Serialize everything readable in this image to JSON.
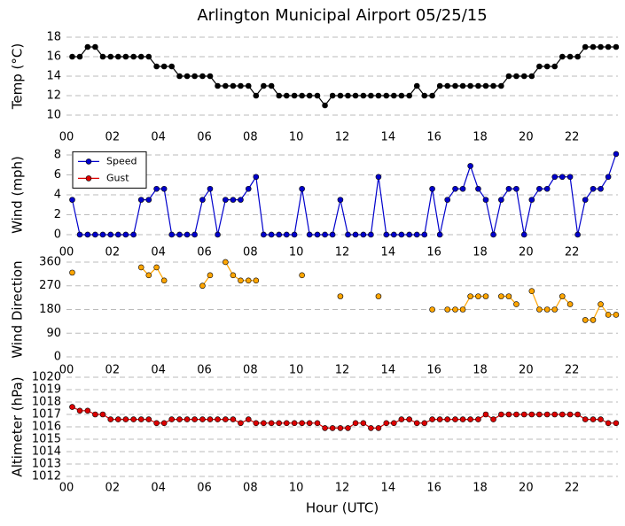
{
  "chart_data": [
    {
      "type": "line",
      "title": "Arlington Municipal Airport 05/25/15",
      "y_label": "Temp (°C)",
      "x": [
        0.25,
        0.58,
        0.92,
        1.25,
        1.58,
        1.92,
        2.25,
        2.58,
        2.92,
        3.25,
        3.58,
        3.92,
        4.25,
        4.58,
        4.92,
        5.25,
        5.58,
        5.92,
        6.25,
        6.58,
        6.92,
        7.25,
        7.58,
        7.92,
        8.25,
        8.58,
        8.92,
        9.25,
        9.58,
        9.92,
        10.25,
        10.58,
        10.92,
        11.25,
        11.58,
        11.92,
        12.25,
        12.58,
        12.92,
        13.25,
        13.58,
        13.92,
        14.25,
        14.58,
        14.92,
        15.25,
        15.58,
        15.92,
        16.25,
        16.58,
        16.92,
        17.25,
        17.58,
        17.92,
        18.25,
        18.58,
        18.92,
        19.25,
        19.58,
        19.92,
        20.25,
        20.58,
        20.92,
        21.25,
        21.58,
        21.92,
        22.25,
        22.58,
        22.92,
        23.25,
        23.58,
        23.92
      ],
      "values": [
        16,
        16,
        17,
        17,
        16,
        16,
        16,
        16,
        16,
        16,
        16,
        15,
        15,
        15,
        14,
        14,
        14,
        14,
        14,
        13,
        13,
        13,
        13,
        13,
        12,
        13,
        13,
        12,
        12,
        12,
        12,
        12,
        12,
        11,
        12,
        12,
        12,
        12,
        12,
        12,
        12,
        12,
        12,
        12,
        12,
        13,
        12,
        12,
        13,
        13,
        13,
        13,
        13,
        13,
        13,
        13,
        13,
        14,
        14,
        14,
        14,
        15,
        15,
        15,
        16,
        16,
        16,
        17,
        17,
        17,
        17,
        17
      ],
      "color": "#000000",
      "xlim": [
        0,
        24
      ],
      "xticks": [
        {
          "value": 0,
          "label": "00"
        },
        {
          "value": 2,
          "label": "02"
        },
        {
          "value": 4,
          "label": "04"
        },
        {
          "value": 6,
          "label": "06"
        },
        {
          "value": 8,
          "label": "08"
        },
        {
          "value": 10,
          "label": "10"
        },
        {
          "value": 12,
          "label": "12"
        },
        {
          "value": 14,
          "label": "14"
        },
        {
          "value": 16,
          "label": "16"
        },
        {
          "value": 18,
          "label": "18"
        },
        {
          "value": 20,
          "label": "20"
        },
        {
          "value": 22,
          "label": "22"
        }
      ],
      "ylim": [
        9.5,
        18.5
      ],
      "yticks": [
        10,
        12,
        14,
        16,
        18
      ],
      "grid": true
    },
    {
      "type": "line",
      "y_label": "Wind (mph)",
      "x": [
        0.25,
        0.58,
        0.92,
        1.25,
        1.58,
        1.92,
        2.25,
        2.58,
        2.92,
        3.25,
        3.58,
        3.92,
        4.25,
        4.58,
        4.92,
        5.25,
        5.58,
        5.92,
        6.25,
        6.58,
        6.92,
        7.25,
        7.58,
        7.92,
        8.25,
        8.58,
        8.92,
        9.25,
        9.58,
        9.92,
        10.25,
        10.58,
        10.92,
        11.25,
        11.58,
        11.92,
        12.25,
        12.58,
        12.92,
        13.25,
        13.58,
        13.92,
        14.25,
        14.58,
        14.92,
        15.25,
        15.58,
        15.92,
        16.25,
        16.58,
        16.92,
        17.25,
        17.58,
        17.92,
        18.25,
        18.58,
        18.92,
        19.25,
        19.58,
        19.92,
        20.25,
        20.58,
        20.92,
        21.25,
        21.58,
        21.92,
        22.25,
        22.58,
        22.92,
        23.25,
        23.58,
        23.92
      ],
      "series": [
        {
          "name": "Speed",
          "color": "#0000cc",
          "values": [
            3.5,
            0,
            0,
            0,
            0,
            0,
            0,
            0,
            0,
            3.5,
            3.5,
            4.6,
            4.6,
            0,
            0,
            0,
            0,
            3.5,
            4.6,
            0,
            3.5,
            3.5,
            3.5,
            4.6,
            5.8,
            0,
            0,
            0,
            0,
            0,
            4.6,
            0,
            0,
            0,
            0,
            3.5,
            0,
            0,
            0,
            0,
            5.8,
            0,
            0,
            0,
            0,
            0,
            0,
            4.6,
            0,
            3.5,
            4.6,
            4.6,
            6.9,
            4.6,
            3.5,
            0,
            3.5,
            4.6,
            4.6,
            0,
            3.5,
            4.6,
            4.6,
            5.8,
            5.8,
            5.8,
            0,
            3.5,
            4.6,
            4.6,
            5.8,
            8.1
          ]
        },
        {
          "name": "Gust",
          "color": "#dd0000",
          "values": [
            null,
            null,
            null,
            null,
            null,
            null,
            null,
            null,
            null,
            null,
            null,
            null,
            null,
            null,
            null,
            null,
            null,
            null,
            null,
            null,
            null,
            null,
            null,
            null,
            null,
            null,
            null,
            null,
            null,
            null,
            null,
            null,
            null,
            null,
            null,
            null,
            null,
            null,
            null,
            null,
            null,
            null,
            null,
            null,
            null,
            null,
            null,
            null,
            null,
            null,
            null,
            null,
            null,
            null,
            null,
            null,
            null,
            null,
            null,
            null,
            null,
            null,
            null,
            null,
            null,
            null,
            null,
            null,
            null,
            null,
            null,
            null
          ]
        }
      ],
      "legend": "upper left",
      "xlim": [
        0,
        24
      ],
      "xticks": [
        {
          "value": 0,
          "label": "00"
        },
        {
          "value": 2,
          "label": "02"
        },
        {
          "value": 4,
          "label": "04"
        },
        {
          "value": 6,
          "label": "06"
        },
        {
          "value": 8,
          "label": "08"
        },
        {
          "value": 10,
          "label": "10"
        },
        {
          "value": 12,
          "label": "12"
        },
        {
          "value": 14,
          "label": "14"
        },
        {
          "value": 16,
          "label": "16"
        },
        {
          "value": 18,
          "label": "18"
        },
        {
          "value": 20,
          "label": "20"
        },
        {
          "value": 22,
          "label": "22"
        }
      ],
      "ylim": [
        -0.5,
        8.5
      ],
      "yticks": [
        0,
        2,
        4,
        6,
        8
      ],
      "grid": true
    },
    {
      "type": "line",
      "y_label": "Wind Direction",
      "x": [
        0.25,
        0.58,
        0.92,
        1.25,
        1.58,
        1.92,
        2.25,
        2.58,
        2.92,
        3.25,
        3.58,
        3.92,
        4.25,
        4.58,
        4.92,
        5.25,
        5.58,
        5.92,
        6.25,
        6.58,
        6.92,
        7.25,
        7.58,
        7.92,
        8.25,
        8.58,
        8.92,
        9.25,
        9.58,
        9.92,
        10.25,
        10.58,
        10.92,
        11.25,
        11.58,
        11.92,
        12.25,
        12.58,
        12.92,
        13.25,
        13.58,
        13.92,
        14.25,
        14.58,
        14.92,
        15.25,
        15.58,
        15.92,
        16.25,
        16.58,
        16.92,
        17.25,
        17.58,
        17.92,
        18.25,
        18.58,
        18.92,
        19.25,
        19.58,
        19.92,
        20.25,
        20.58,
        20.92,
        21.25,
        21.58,
        21.92,
        22.25,
        22.58,
        22.92,
        23.25,
        23.58,
        23.92
      ],
      "values": [
        320,
        null,
        null,
        null,
        null,
        null,
        null,
        null,
        null,
        340,
        310,
        340,
        290,
        null,
        null,
        null,
        null,
        270,
        310,
        null,
        360,
        310,
        290,
        290,
        290,
        null,
        null,
        null,
        null,
        null,
        310,
        null,
        null,
        null,
        null,
        230,
        null,
        null,
        null,
        null,
        230,
        null,
        null,
        null,
        null,
        null,
        null,
        180,
        null,
        180,
        180,
        180,
        230,
        230,
        230,
        null,
        230,
        230,
        200,
        null,
        250,
        180,
        180,
        180,
        230,
        200,
        null,
        140,
        140,
        200,
        160,
        160
      ],
      "color": "#ffa500",
      "xlim": [
        0,
        24
      ],
      "xticks": [
        {
          "value": 0,
          "label": "00"
        },
        {
          "value": 2,
          "label": "02"
        },
        {
          "value": 4,
          "label": "04"
        },
        {
          "value": 6,
          "label": "06"
        },
        {
          "value": 8,
          "label": "08"
        },
        {
          "value": 10,
          "label": "10"
        },
        {
          "value": 12,
          "label": "12"
        },
        {
          "value": 14,
          "label": "14"
        },
        {
          "value": 16,
          "label": "16"
        },
        {
          "value": 18,
          "label": "18"
        },
        {
          "value": 20,
          "label": "20"
        },
        {
          "value": 22,
          "label": "22"
        }
      ],
      "ylim": [
        -10,
        370
      ],
      "yticks": [
        0,
        90,
        180,
        270,
        360
      ],
      "grid": true
    },
    {
      "type": "line",
      "y_label": "Altimeter (hPa)",
      "x_label": "Hour (UTC)",
      "x": [
        0.25,
        0.58,
        0.92,
        1.25,
        1.58,
        1.92,
        2.25,
        2.58,
        2.92,
        3.25,
        3.58,
        3.92,
        4.25,
        4.58,
        4.92,
        5.25,
        5.58,
        5.92,
        6.25,
        6.58,
        6.92,
        7.25,
        7.58,
        7.92,
        8.25,
        8.58,
        8.92,
        9.25,
        9.58,
        9.92,
        10.25,
        10.58,
        10.92,
        11.25,
        11.58,
        11.92,
        12.25,
        12.58,
        12.92,
        13.25,
        13.58,
        13.92,
        14.25,
        14.58,
        14.92,
        15.25,
        15.58,
        15.92,
        16.25,
        16.58,
        16.92,
        17.25,
        17.58,
        17.92,
        18.25,
        18.58,
        18.92,
        19.25,
        19.58,
        19.92,
        20.25,
        20.58,
        20.92,
        21.25,
        21.58,
        21.92,
        22.25,
        22.58,
        22.92,
        23.25,
        23.58,
        23.92
      ],
      "values": [
        1017.6,
        1017.3,
        1017.3,
        1017,
        1017,
        1016.6,
        1016.6,
        1016.6,
        1016.6,
        1016.6,
        1016.6,
        1016.3,
        1016.3,
        1016.6,
        1016.6,
        1016.6,
        1016.6,
        1016.6,
        1016.6,
        1016.6,
        1016.6,
        1016.6,
        1016.3,
        1016.6,
        1016.3,
        1016.3,
        1016.3,
        1016.3,
        1016.3,
        1016.3,
        1016.3,
        1016.3,
        1016.3,
        1015.9,
        1015.9,
        1015.9,
        1015.9,
        1016.3,
        1016.3,
        1015.9,
        1015.9,
        1016.3,
        1016.3,
        1016.6,
        1016.6,
        1016.3,
        1016.3,
        1016.6,
        1016.6,
        1016.6,
        1016.6,
        1016.6,
        1016.6,
        1016.6,
        1017,
        1016.6,
        1017,
        1017,
        1017,
        1017,
        1017,
        1017,
        1017,
        1017,
        1017,
        1017,
        1017,
        1016.6,
        1016.6,
        1016.6,
        1016.3,
        1016.3
      ],
      "color": "#dd0000",
      "xlim": [
        0,
        24
      ],
      "xticks": [
        {
          "value": 0,
          "label": "00"
        },
        {
          "value": 2,
          "label": "02"
        },
        {
          "value": 4,
          "label": "04"
        },
        {
          "value": 6,
          "label": "06"
        },
        {
          "value": 8,
          "label": "08"
        },
        {
          "value": 10,
          "label": "10"
        },
        {
          "value": 12,
          "label": "12"
        },
        {
          "value": 14,
          "label": "14"
        },
        {
          "value": 16,
          "label": "16"
        },
        {
          "value": 18,
          "label": "18"
        },
        {
          "value": 20,
          "label": "20"
        },
        {
          "value": 22,
          "label": "22"
        }
      ],
      "ylim": [
        1012,
        1020
      ],
      "yticks": [
        1012,
        1013,
        1014,
        1015,
        1016,
        1017,
        1018,
        1019,
        1020
      ],
      "grid": true
    }
  ]
}
